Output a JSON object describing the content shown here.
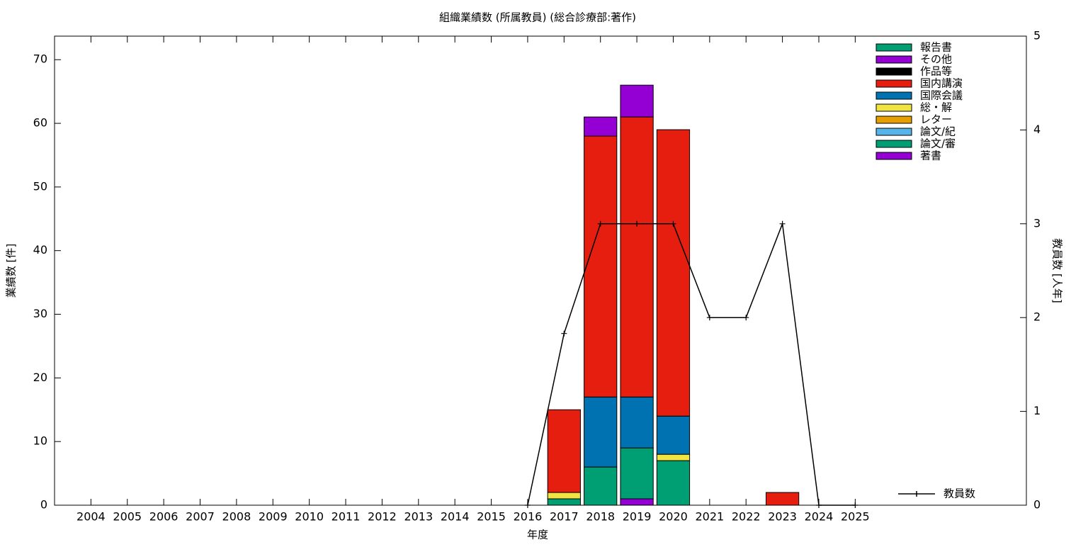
{
  "chart_data": {
    "type": "bar",
    "stacked": true,
    "title": "組織業績数 (所属教員) (総合診療部:著作)",
    "x_label": "年度",
    "y_label": "業績数 [件]",
    "y2_label": "教員数 [人年]",
    "categories": [
      "2004",
      "2005",
      "2006",
      "2007",
      "2008",
      "2009",
      "2010",
      "2011",
      "2012",
      "2013",
      "2014",
      "2015",
      "2016",
      "2017",
      "2018",
      "2019",
      "2020",
      "2021",
      "2022",
      "2023",
      "2024",
      "2025"
    ],
    "ylim": [
      0,
      73.7
    ],
    "yticks": [
      0,
      10,
      20,
      30,
      40,
      50,
      60,
      70
    ],
    "y2lim": [
      0,
      5
    ],
    "y2ticks": [
      0,
      1,
      2,
      3,
      4,
      5
    ],
    "legend": "top-right",
    "series": [
      {
        "name": "著書",
        "color": "#9400d3",
        "values": [
          0,
          0,
          0,
          0,
          0,
          0,
          0,
          0,
          0,
          0,
          0,
          0,
          0,
          0,
          0,
          1,
          0,
          0,
          0,
          0,
          0,
          0
        ]
      },
      {
        "name": "論文/審",
        "color": "#009e73",
        "values": [
          0,
          0,
          0,
          0,
          0,
          0,
          0,
          0,
          0,
          0,
          0,
          0,
          0,
          1,
          6,
          8,
          7,
          0,
          0,
          0,
          0,
          0
        ]
      },
      {
        "name": "論文/紀",
        "color": "#56b4e9",
        "values": [
          0,
          0,
          0,
          0,
          0,
          0,
          0,
          0,
          0,
          0,
          0,
          0,
          0,
          0,
          0,
          0,
          0,
          0,
          0,
          0,
          0,
          0
        ]
      },
      {
        "name": "レター",
        "color": "#e69f00",
        "values": [
          0,
          0,
          0,
          0,
          0,
          0,
          0,
          0,
          0,
          0,
          0,
          0,
          0,
          0,
          0,
          0,
          0,
          0,
          0,
          0,
          0,
          0
        ]
      },
      {
        "name": "総・解",
        "color": "#f0e442",
        "values": [
          0,
          0,
          0,
          0,
          0,
          0,
          0,
          0,
          0,
          0,
          0,
          0,
          0,
          1,
          0,
          0,
          1,
          0,
          0,
          0,
          0,
          0
        ]
      },
      {
        "name": "国際会議",
        "color": "#0072b2",
        "values": [
          0,
          0,
          0,
          0,
          0,
          0,
          0,
          0,
          0,
          0,
          0,
          0,
          0,
          0,
          11,
          8,
          6,
          0,
          0,
          0,
          0,
          0
        ]
      },
      {
        "name": "国内講演",
        "color": "#e51e10",
        "values": [
          0,
          0,
          0,
          0,
          0,
          0,
          0,
          0,
          0,
          0,
          0,
          0,
          0,
          13,
          41,
          44,
          45,
          0,
          0,
          2,
          0,
          0
        ]
      },
      {
        "name": "作品等",
        "color": "#000000",
        "values": [
          0,
          0,
          0,
          0,
          0,
          0,
          0,
          0,
          0,
          0,
          0,
          0,
          0,
          0,
          0,
          0,
          0,
          0,
          0,
          0,
          0,
          0
        ]
      },
      {
        "name": "その他",
        "color": "#9400d3",
        "values": [
          0,
          0,
          0,
          0,
          0,
          0,
          0,
          0,
          0,
          0,
          0,
          0,
          0,
          0,
          3,
          5,
          0,
          0,
          0,
          0,
          0,
          0
        ]
      },
      {
        "name": "報告書",
        "color": "#009e73",
        "values": [
          0,
          0,
          0,
          0,
          0,
          0,
          0,
          0,
          0,
          0,
          0,
          0,
          0,
          0,
          0,
          0,
          0,
          0,
          0,
          0,
          0,
          0
        ]
      },
      {
        "name": "教員数",
        "type": "line",
        "axis": "y2",
        "color": "#000000",
        "values": [
          null,
          null,
          null,
          null,
          null,
          null,
          null,
          null,
          null,
          null,
          null,
          null,
          0,
          1.83,
          3,
          3,
          3,
          2,
          2,
          3,
          0,
          0
        ]
      }
    ]
  }
}
